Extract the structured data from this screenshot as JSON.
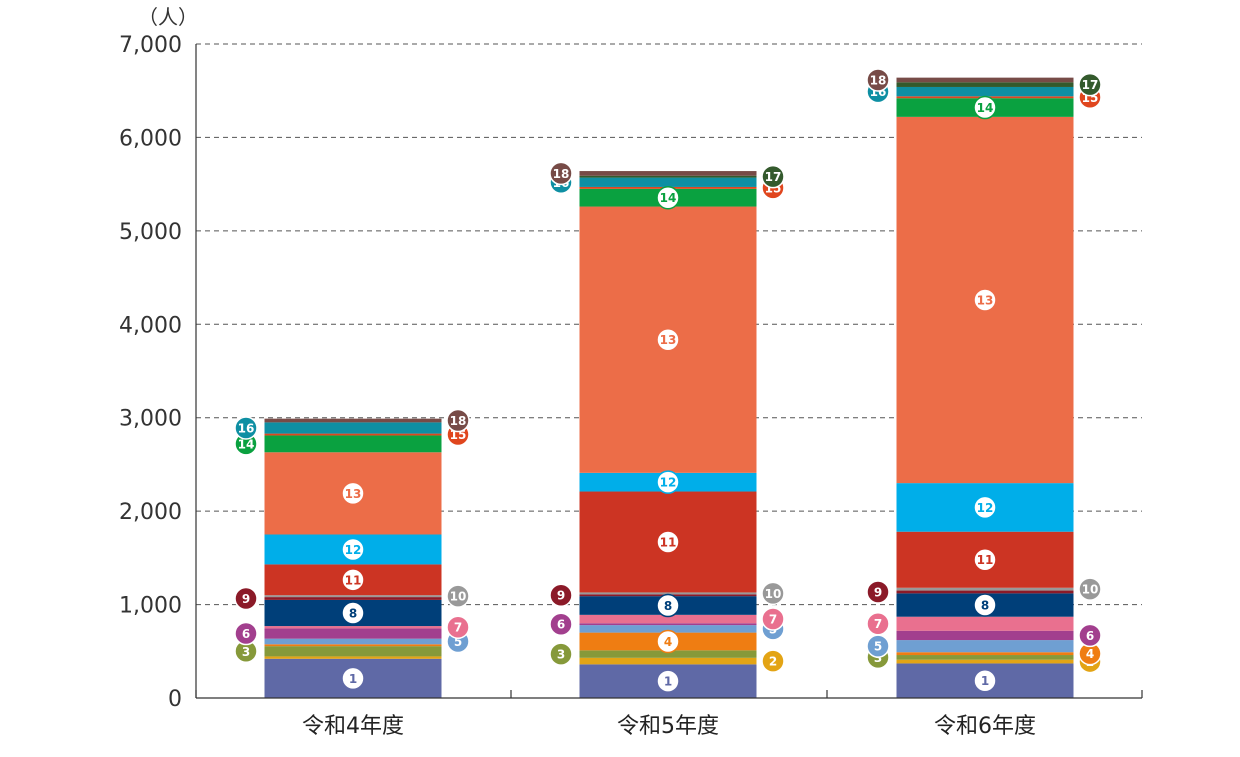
{
  "chart_data": {
    "type": "bar",
    "stacked": true,
    "unit_label": "（人）",
    "ylim": [
      0,
      7000
    ],
    "y_ticks": [
      0,
      1000,
      2000,
      3000,
      4000,
      5000,
      6000,
      7000
    ],
    "y_tick_labels": [
      "0",
      "1,000",
      "2,000",
      "3,000",
      "4,000",
      "5,000",
      "6,000",
      "7,000"
    ],
    "grid": true,
    "categories": [
      "令和4年度",
      "令和5年度",
      "令和6年度"
    ],
    "series": [
      {
        "name": "1",
        "color": "#5f69a6",
        "values": [
          420,
          360,
          370
        ]
      },
      {
        "name": "2",
        "color": "#e3a415",
        "values": [
          25,
          70,
          40
        ]
      },
      {
        "name": "3",
        "color": "#86993a",
        "values": [
          110,
          80,
          50
        ]
      },
      {
        "name": "4",
        "color": "#ef7d12",
        "values": [
          20,
          190,
          30
        ]
      },
      {
        "name": "5",
        "color": "#6f9fd2",
        "values": [
          60,
          80,
          130
        ]
      },
      {
        "name": "6",
        "color": "#a23f8e",
        "values": [
          110,
          20,
          100
        ]
      },
      {
        "name": "7",
        "color": "#e9708f",
        "values": [
          25,
          90,
          150
        ]
      },
      {
        "name": "8",
        "color": "#003f79",
        "values": [
          280,
          200,
          250
        ]
      },
      {
        "name": "9",
        "color": "#8b1a28",
        "values": [
          30,
          20,
          30
        ]
      },
      {
        "name": "10",
        "color": "#999999",
        "values": [
          20,
          20,
          30
        ]
      },
      {
        "name": "11",
        "color": "#cc3423",
        "values": [
          330,
          1080,
          600
        ]
      },
      {
        "name": "12",
        "color": "#00aee9",
        "values": [
          320,
          200,
          520
        ]
      },
      {
        "name": "13",
        "color": "#ec6d48",
        "values": [
          880,
          2850,
          3920
        ]
      },
      {
        "name": "14",
        "color": "#0aa140",
        "values": [
          180,
          190,
          200
        ]
      },
      {
        "name": "15",
        "color": "#e0461e",
        "values": [
          20,
          20,
          20
        ]
      },
      {
        "name": "16",
        "color": "#0e8fa3",
        "values": [
          120,
          100,
          100
        ]
      },
      {
        "name": "17",
        "color": "#345a2d",
        "values": [
          0,
          20,
          50
        ]
      },
      {
        "name": "18",
        "color": "#774b47",
        "values": [
          40,
          50,
          50
        ]
      }
    ],
    "badges": [
      [
        {
          "n": "1",
          "side": "inside"
        },
        {
          "n": "3",
          "side": "left"
        },
        {
          "n": "5",
          "side": "right"
        },
        {
          "n": "6",
          "side": "left"
        },
        {
          "n": "7",
          "side": "right"
        },
        {
          "n": "8",
          "side": "inside"
        },
        {
          "n": "9",
          "side": "left"
        },
        {
          "n": "10",
          "side": "right"
        },
        {
          "n": "11",
          "side": "inside"
        },
        {
          "n": "12",
          "side": "inside"
        },
        {
          "n": "13",
          "side": "inside"
        },
        {
          "n": "14",
          "side": "left"
        },
        {
          "n": "15",
          "side": "right"
        },
        {
          "n": "16",
          "side": "left"
        },
        {
          "n": "18",
          "side": "right"
        }
      ],
      [
        {
          "n": "1",
          "side": "inside"
        },
        {
          "n": "2",
          "side": "right"
        },
        {
          "n": "3",
          "side": "left"
        },
        {
          "n": "4",
          "side": "inside"
        },
        {
          "n": "5",
          "side": "right"
        },
        {
          "n": "6",
          "side": "left"
        },
        {
          "n": "7",
          "side": "right"
        },
        {
          "n": "8",
          "side": "inside"
        },
        {
          "n": "9",
          "side": "left"
        },
        {
          "n": "10",
          "side": "right"
        },
        {
          "n": "11",
          "side": "inside"
        },
        {
          "n": "12",
          "side": "inside"
        },
        {
          "n": "13",
          "side": "inside"
        },
        {
          "n": "14",
          "side": "inside"
        },
        {
          "n": "15",
          "side": "right"
        },
        {
          "n": "16",
          "side": "left"
        },
        {
          "n": "17",
          "side": "right"
        },
        {
          "n": "18",
          "side": "left"
        }
      ],
      [
        {
          "n": "1",
          "side": "inside"
        },
        {
          "n": "2",
          "side": "right"
        },
        {
          "n": "3",
          "side": "left"
        },
        {
          "n": "4",
          "side": "right"
        },
        {
          "n": "5",
          "side": "left"
        },
        {
          "n": "6",
          "side": "right"
        },
        {
          "n": "7",
          "side": "left"
        },
        {
          "n": "8",
          "side": "inside"
        },
        {
          "n": "9",
          "side": "left"
        },
        {
          "n": "10",
          "side": "right"
        },
        {
          "n": "11",
          "side": "inside"
        },
        {
          "n": "12",
          "side": "inside"
        },
        {
          "n": "13",
          "side": "inside"
        },
        {
          "n": "14",
          "side": "inside"
        },
        {
          "n": "15",
          "side": "right"
        },
        {
          "n": "16",
          "side": "left"
        },
        {
          "n": "17",
          "side": "right"
        },
        {
          "n": "18",
          "side": "left"
        }
      ]
    ]
  }
}
